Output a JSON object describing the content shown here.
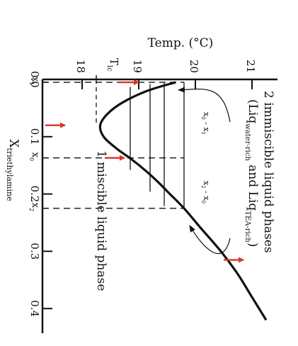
{
  "chart_data": {
    "type": "line",
    "title": "",
    "orientation": "rotated-90-clockwise",
    "y_axis": {
      "label": "Temp. (°C)",
      "range": [
        17.3,
        21.3
      ],
      "ticks": [
        {
          "value": 18,
          "label": "18"
        },
        {
          "value": 19,
          "label": "19"
        },
        {
          "value": 20,
          "label": "20"
        },
        {
          "value": 21,
          "label": "21"
        }
      ],
      "lower_critical_label": "T",
      "lower_critical_sub": "lc",
      "lower_critical_value": 18.25
    },
    "x_axis": {
      "label": "X",
      "label_sub": "triethylamine",
      "range": [
        0.0,
        0.43
      ],
      "ticks": [
        {
          "value": 0.0,
          "label": "0.0"
        },
        {
          "value": 0.1,
          "label": "0.1"
        },
        {
          "value": 0.2,
          "label": "0.2"
        },
        {
          "value": 0.3,
          "label": "0.3"
        },
        {
          "value": 0.4,
          "label": "0.4"
        }
      ],
      "markers": [
        {
          "value": 0.005,
          "label": "x",
          "sub": "1"
        },
        {
          "value": 0.137,
          "label": "x",
          "sub": "0"
        },
        {
          "value": 0.225,
          "label": "x",
          "sub": "2"
        }
      ]
    },
    "series": [
      {
        "x": [
          0.005,
          0.02,
          0.04,
          0.06,
          0.08,
          0.1,
          0.12,
          0.14,
          0.16,
          0.18,
          0.2,
          0.225,
          0.26,
          0.3,
          0.34,
          0.38,
          0.42
        ],
        "y": [
          19.65,
          19.15,
          18.72,
          18.45,
          18.32,
          18.38,
          18.6,
          18.88,
          19.13,
          19.35,
          19.55,
          19.8,
          20.1,
          20.45,
          20.75,
          21.0,
          21.25
        ]
      }
    ],
    "tie_lines": {
      "y": [
        18.85,
        19.2,
        19.45,
        19.8
      ],
      "x_left": [
        0.013,
        0.008,
        0.006,
        0.005
      ],
      "x_right": [
        0.158,
        0.196,
        0.221,
        0.225
      ]
    },
    "guide_lines": {
      "temperature": 19.8,
      "x_values": [
        0.005,
        0.137,
        0.225
      ]
    },
    "red_arrows": [
      {
        "x": 0.005,
        "y": 19.0
      },
      {
        "x": 0.08,
        "y": 17.7
      },
      {
        "x": 0.137,
        "y": 18.75
      },
      {
        "x": 0.315,
        "y": 20.85
      }
    ],
    "annotations": {
      "two_phase_line1": "2 immiscible liquid phases",
      "two_phase_liq": "(Liq",
      "two_phase_sub1": "water-rich",
      "two_phase_and": " and Liq",
      "two_phase_sub2": "TEA-rich",
      "two_phase_close": ")",
      "one_phase": "1 miscible liquid phase",
      "lever1_a": "x",
      "lever1_a_sub": "0",
      "lever1_dash": " - x",
      "lever1_b_sub": "1",
      "lever2_a": "x",
      "lever2_a_sub": "2",
      "lever2_dash": " - x",
      "lever2_b_sub": "0"
    },
    "grid": false,
    "legend": "none"
  }
}
